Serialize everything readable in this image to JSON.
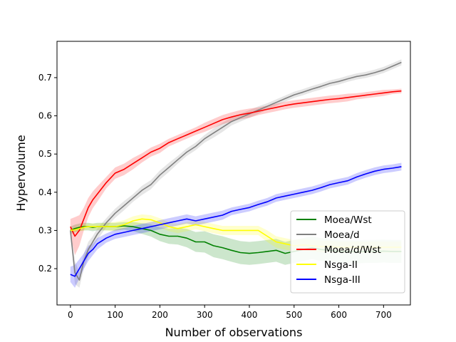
{
  "chart_data": {
    "type": "line",
    "xlabel": "Number of observations",
    "ylabel": "Hypervolume",
    "xlim": [
      -30,
      760
    ],
    "ylim": [
      0.105,
      0.795
    ],
    "xticks": [
      0,
      100,
      200,
      300,
      400,
      500,
      600,
      700
    ],
    "yticks": [
      0.2,
      0.3,
      0.4,
      0.5,
      0.6,
      0.7
    ],
    "ytick_labels": [
      "0.2",
      "0.3",
      "0.4",
      "0.5",
      "0.6",
      "0.7"
    ],
    "grid": false,
    "legend_position": "lower-right",
    "series": [
      {
        "name": "Moea/Wst",
        "color": "#008000",
        "x": [
          0,
          10,
          20,
          30,
          40,
          50,
          60,
          80,
          100,
          120,
          140,
          160,
          180,
          200,
          220,
          240,
          260,
          280,
          300,
          320,
          340,
          360,
          380,
          400,
          420,
          440,
          460,
          480,
          500,
          520,
          540,
          560,
          580,
          600,
          620,
          640,
          660,
          680,
          700,
          720,
          740
        ],
        "y": [
          0.3,
          0.305,
          0.308,
          0.31,
          0.31,
          0.308,
          0.31,
          0.31,
          0.31,
          0.312,
          0.31,
          0.305,
          0.3,
          0.29,
          0.285,
          0.285,
          0.28,
          0.27,
          0.27,
          0.26,
          0.255,
          0.248,
          0.242,
          0.24,
          0.242,
          0.245,
          0.248,
          0.24,
          0.245,
          0.25,
          0.255,
          0.25,
          0.248,
          0.245,
          0.245,
          0.244,
          0.245,
          0.245,
          0.246,
          0.245,
          0.245
        ],
        "band": [
          0.01,
          0.01,
          0.01,
          0.01,
          0.01,
          0.01,
          0.01,
          0.01,
          0.01,
          0.01,
          0.012,
          0.014,
          0.016,
          0.018,
          0.02,
          0.022,
          0.024,
          0.026,
          0.028,
          0.03,
          0.03,
          0.03,
          0.03,
          0.03,
          0.03,
          0.03,
          0.03,
          0.03,
          0.03,
          0.03,
          0.03,
          0.03,
          0.03,
          0.03,
          0.03,
          0.03,
          0.03,
          0.03,
          0.03,
          0.03,
          0.03
        ]
      },
      {
        "name": "Moea/d",
        "color": "#808080",
        "x": [
          0,
          10,
          20,
          30,
          40,
          50,
          60,
          80,
          100,
          120,
          140,
          160,
          180,
          200,
          220,
          240,
          260,
          280,
          300,
          320,
          340,
          360,
          380,
          400,
          420,
          440,
          460,
          480,
          500,
          520,
          540,
          560,
          580,
          600,
          620,
          640,
          660,
          680,
          700,
          720,
          740
        ],
        "y": [
          0.3,
          0.19,
          0.17,
          0.22,
          0.25,
          0.27,
          0.29,
          0.32,
          0.345,
          0.365,
          0.385,
          0.405,
          0.42,
          0.445,
          0.465,
          0.485,
          0.505,
          0.52,
          0.54,
          0.555,
          0.57,
          0.585,
          0.595,
          0.605,
          0.615,
          0.625,
          0.635,
          0.645,
          0.655,
          0.662,
          0.67,
          0.677,
          0.685,
          0.69,
          0.697,
          0.703,
          0.707,
          0.713,
          0.72,
          0.73,
          0.74
        ],
        "band": [
          0.01,
          0.03,
          0.02,
          0.02,
          0.02,
          0.015,
          0.015,
          0.012,
          0.012,
          0.012,
          0.01,
          0.012,
          0.012,
          0.012,
          0.012,
          0.01,
          0.01,
          0.01,
          0.01,
          0.012,
          0.012,
          0.01,
          0.01,
          0.01,
          0.01,
          0.008,
          0.008,
          0.008,
          0.008,
          0.008,
          0.008,
          0.008,
          0.008,
          0.008,
          0.008,
          0.008,
          0.008,
          0.008,
          0.008,
          0.008,
          0.008
        ]
      },
      {
        "name": "Moea/d/Wst",
        "color": "#ff0000",
        "x": [
          0,
          10,
          20,
          30,
          40,
          50,
          60,
          80,
          100,
          120,
          140,
          160,
          180,
          200,
          220,
          240,
          260,
          280,
          300,
          320,
          340,
          360,
          380,
          400,
          420,
          440,
          460,
          480,
          500,
          520,
          540,
          560,
          580,
          600,
          620,
          640,
          660,
          680,
          700,
          720,
          740
        ],
        "y": [
          0.31,
          0.285,
          0.3,
          0.33,
          0.36,
          0.38,
          0.395,
          0.425,
          0.45,
          0.46,
          0.475,
          0.49,
          0.505,
          0.515,
          0.53,
          0.54,
          0.55,
          0.56,
          0.57,
          0.58,
          0.59,
          0.597,
          0.603,
          0.607,
          0.612,
          0.617,
          0.622,
          0.627,
          0.631,
          0.634,
          0.637,
          0.64,
          0.643,
          0.645,
          0.648,
          0.651,
          0.654,
          0.657,
          0.66,
          0.663,
          0.665
        ],
        "band": [
          0.02,
          0.05,
          0.04,
          0.03,
          0.025,
          0.022,
          0.02,
          0.015,
          0.015,
          0.015,
          0.015,
          0.012,
          0.012,
          0.012,
          0.01,
          0.01,
          0.01,
          0.01,
          0.012,
          0.012,
          0.012,
          0.012,
          0.012,
          0.012,
          0.01,
          0.01,
          0.01,
          0.01,
          0.01,
          0.01,
          0.01,
          0.01,
          0.01,
          0.01,
          0.01,
          0.008,
          0.008,
          0.008,
          0.008,
          0.006,
          0.006
        ]
      },
      {
        "name": "Nsga-II",
        "color": "#ffff00",
        "x": [
          0,
          10,
          20,
          30,
          40,
          50,
          60,
          80,
          100,
          120,
          140,
          160,
          180,
          200,
          220,
          240,
          260,
          280,
          300,
          320,
          340,
          360,
          380,
          400,
          420,
          440,
          460,
          480,
          500,
          520,
          540,
          560,
          580,
          600,
          620,
          640,
          660,
          680,
          700,
          720,
          740
        ],
        "y": [
          0.3,
          0.302,
          0.305,
          0.308,
          0.31,
          0.31,
          0.31,
          0.31,
          0.31,
          0.315,
          0.325,
          0.33,
          0.328,
          0.32,
          0.31,
          0.305,
          0.31,
          0.315,
          0.31,
          0.305,
          0.3,
          0.3,
          0.3,
          0.3,
          0.3,
          0.285,
          0.27,
          0.265,
          0.26,
          0.262,
          0.26,
          0.258,
          0.258,
          0.256,
          0.256,
          0.256,
          0.256,
          0.256,
          0.256,
          0.256,
          0.256
        ],
        "band": [
          0.005,
          0.006,
          0.007,
          0.008,
          0.008,
          0.008,
          0.008,
          0.01,
          0.012,
          0.012,
          0.012,
          0.012,
          0.012,
          0.012,
          0.012,
          0.012,
          0.012,
          0.012,
          0.012,
          0.012,
          0.012,
          0.012,
          0.012,
          0.012,
          0.012,
          0.015,
          0.015,
          0.015,
          0.015,
          0.015,
          0.015,
          0.015,
          0.015,
          0.015,
          0.015,
          0.015,
          0.015,
          0.015,
          0.015,
          0.015,
          0.015
        ]
      },
      {
        "name": "Nsga-III",
        "color": "#0000ff",
        "x": [
          0,
          10,
          20,
          30,
          40,
          50,
          60,
          80,
          100,
          120,
          140,
          160,
          180,
          200,
          220,
          240,
          260,
          280,
          300,
          320,
          340,
          360,
          380,
          400,
          420,
          440,
          460,
          480,
          500,
          520,
          540,
          560,
          580,
          600,
          620,
          640,
          660,
          680,
          700,
          720,
          740
        ],
        "y": [
          0.185,
          0.18,
          0.2,
          0.22,
          0.24,
          0.25,
          0.265,
          0.28,
          0.29,
          0.295,
          0.3,
          0.305,
          0.31,
          0.315,
          0.32,
          0.325,
          0.33,
          0.325,
          0.33,
          0.335,
          0.34,
          0.35,
          0.355,
          0.36,
          0.368,
          0.375,
          0.385,
          0.39,
          0.395,
          0.4,
          0.405,
          0.412,
          0.42,
          0.425,
          0.43,
          0.44,
          0.448,
          0.455,
          0.46,
          0.463,
          0.467
        ],
        "band": [
          0.02,
          0.03,
          0.025,
          0.02,
          0.02,
          0.015,
          0.015,
          0.012,
          0.012,
          0.012,
          0.012,
          0.012,
          0.012,
          0.012,
          0.012,
          0.012,
          0.012,
          0.012,
          0.012,
          0.012,
          0.012,
          0.01,
          0.01,
          0.01,
          0.01,
          0.01,
          0.01,
          0.01,
          0.01,
          0.01,
          0.01,
          0.01,
          0.01,
          0.01,
          0.01,
          0.01,
          0.01,
          0.01,
          0.01,
          0.01,
          0.01
        ]
      }
    ]
  }
}
